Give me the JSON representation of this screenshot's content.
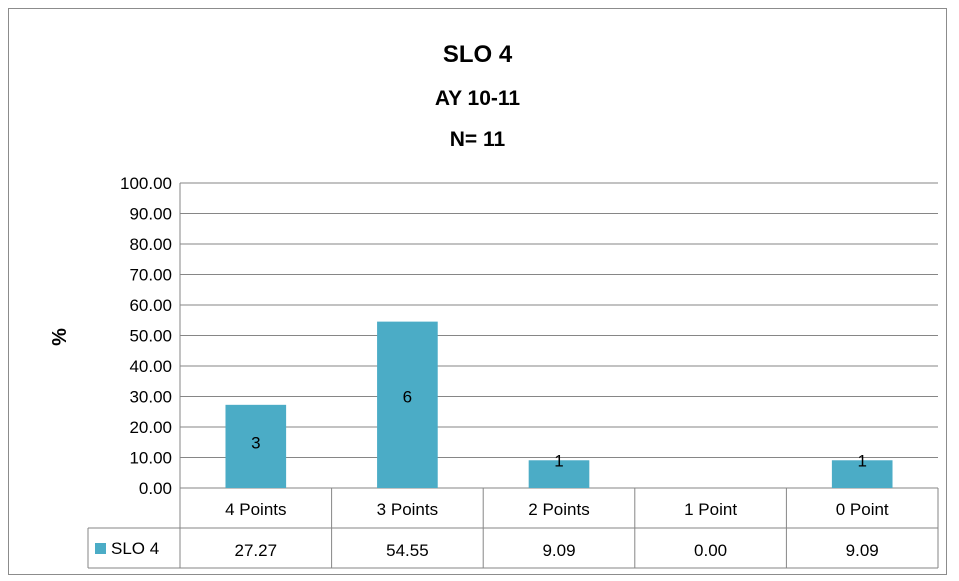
{
  "chart_data": {
    "type": "bar",
    "title": "SLO 4",
    "subtitle": [
      "AY 10-11",
      "N= 11"
    ],
    "ylabel": "%",
    "xlabel": "",
    "ylim": [
      0,
      100
    ],
    "ytick_step": 10,
    "grid": true,
    "categories": [
      "4 Points",
      "3 Points",
      "2 Points",
      "1 Point",
      "0 Point"
    ],
    "series": [
      {
        "name": "SLO 4",
        "color": "#4bacc6",
        "values": [
          27.27,
          54.55,
          9.09,
          0.0,
          9.09
        ],
        "value_labels": [
          "27.27",
          "54.55",
          "9.09",
          "0.00",
          "9.09"
        ],
        "bar_labels": [
          "3",
          "6",
          "1",
          "",
          "1"
        ]
      }
    ],
    "data_table": true
  }
}
